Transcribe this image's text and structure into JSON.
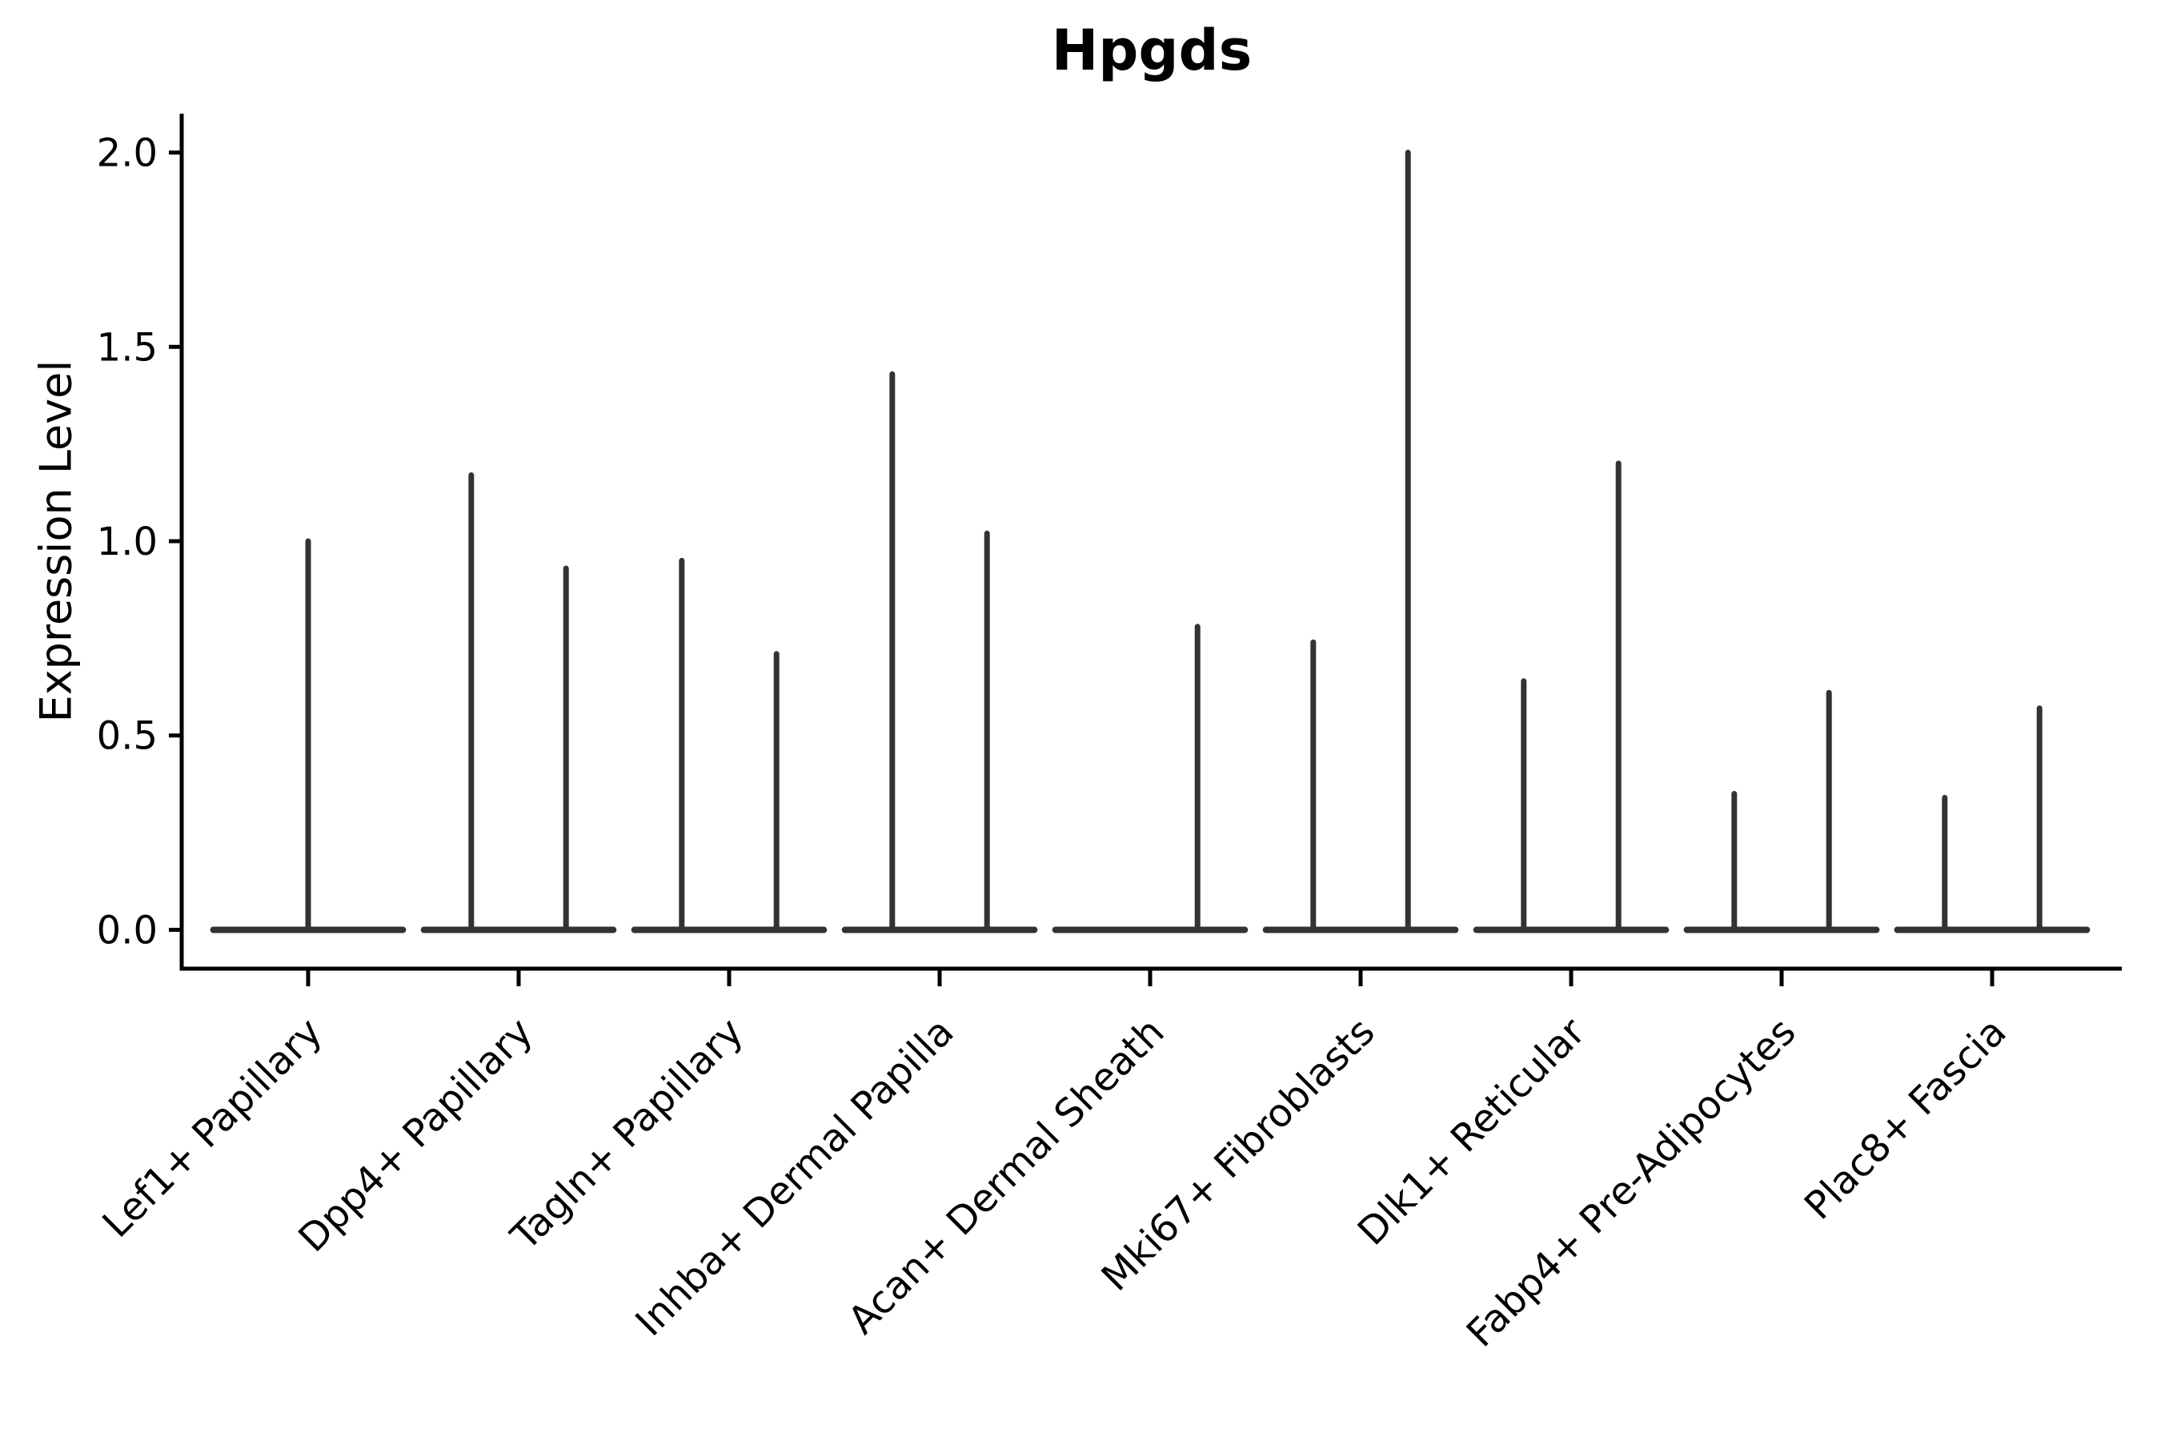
{
  "chart_data": {
    "type": "violin",
    "title": "Hpgds",
    "ylabel": "Expression Level",
    "xlabel": "",
    "ylim": [
      -0.1,
      2.1
    ],
    "grid": false,
    "legend": null,
    "yticks": [
      {
        "value": 0.0,
        "label": "0.0"
      },
      {
        "value": 0.5,
        "label": "0.5"
      },
      {
        "value": 1.0,
        "label": "1.0"
      },
      {
        "value": 1.5,
        "label": "1.5"
      },
      {
        "value": 2.0,
        "label": "2.0"
      }
    ],
    "colors": {
      "violin_stroke": "#333333",
      "axis": "#000000",
      "text": "#000000"
    },
    "categories": [
      {
        "label": "Lef1+ Papillary",
        "violins": [
          {
            "offset": 0.0,
            "width": 0.9,
            "max": 1.0
          }
        ]
      },
      {
        "label": "Dpp4+ Papillary",
        "violins": [
          {
            "offset": -0.225,
            "width": 0.45,
            "max": 1.17
          },
          {
            "offset": 0.225,
            "width": 0.45,
            "max": 0.93
          }
        ]
      },
      {
        "label": "Tagln+ Papillary",
        "violins": [
          {
            "offset": -0.225,
            "width": 0.45,
            "max": 0.95
          },
          {
            "offset": 0.225,
            "width": 0.45,
            "max": 0.71
          }
        ]
      },
      {
        "label": "Inhba+ Dermal Papilla",
        "violins": [
          {
            "offset": -0.225,
            "width": 0.45,
            "max": 1.43
          },
          {
            "offset": 0.225,
            "width": 0.45,
            "max": 1.02
          }
        ]
      },
      {
        "label": "Acan+ Dermal Sheath",
        "violins": [
          {
            "offset": -0.225,
            "width": 0.45,
            "max": 0.0
          },
          {
            "offset": 0.225,
            "width": 0.45,
            "max": 0.78
          }
        ]
      },
      {
        "label": "Mki67+ Fibroblasts",
        "violins": [
          {
            "offset": -0.225,
            "width": 0.45,
            "max": 0.74
          },
          {
            "offset": 0.225,
            "width": 0.45,
            "max": 2.0
          }
        ]
      },
      {
        "label": "Dlk1+ Reticular",
        "violins": [
          {
            "offset": -0.225,
            "width": 0.45,
            "max": 0.64
          },
          {
            "offset": 0.225,
            "width": 0.45,
            "max": 1.2
          }
        ]
      },
      {
        "label": "Fabp4+ Pre-Adipocytes",
        "violins": [
          {
            "offset": -0.225,
            "width": 0.45,
            "max": 0.35
          },
          {
            "offset": 0.225,
            "width": 0.45,
            "max": 0.61
          }
        ]
      },
      {
        "label": "Plac8+ Fascia",
        "violins": [
          {
            "offset": -0.225,
            "width": 0.45,
            "max": 0.34
          },
          {
            "offset": 0.225,
            "width": 0.45,
            "max": 0.57
          }
        ]
      }
    ]
  }
}
